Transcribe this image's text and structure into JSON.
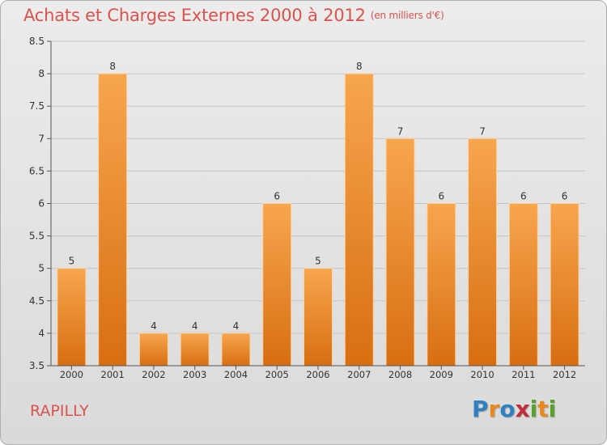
{
  "header": {
    "title": "Achats et Charges Externes 2000 à 2012",
    "subtitle": "(en milliers d'€)"
  },
  "commune": "RAPILLY",
  "logo": {
    "letters": [
      "P",
      "r",
      "o",
      "x",
      "i",
      "t",
      "i"
    ],
    "colors": [
      "#2f7fc1",
      "#e8891d",
      "#2f7fc1",
      "#c22e3a",
      "#5aa02c",
      "#e8891d",
      "#5aa02c"
    ]
  },
  "chart_data": {
    "type": "bar",
    "categories": [
      "2000",
      "2001",
      "2002",
      "2003",
      "2004",
      "2005",
      "2006",
      "2007",
      "2008",
      "2009",
      "2010",
      "2011",
      "2012"
    ],
    "values": [
      5,
      8,
      4,
      4,
      4,
      6,
      5,
      8,
      7,
      6,
      7,
      6,
      6
    ],
    "data_labels": [
      "5",
      "8",
      "4",
      "4",
      "4",
      "6",
      "5",
      "8",
      "7",
      "6",
      "7",
      "6",
      "6"
    ],
    "ylim": [
      3.5,
      8.5
    ],
    "yticks": [
      3.5,
      4,
      4.5,
      5,
      5.5,
      6,
      6.5,
      7,
      7.5,
      8,
      8.5
    ],
    "ytick_labels": [
      "3.5",
      "4",
      "4.5",
      "5",
      "5.5",
      "6",
      "6.5",
      "7",
      "7.5",
      "8",
      "8.5"
    ],
    "grid": "horizontal",
    "bar_color": "#e8891d"
  }
}
